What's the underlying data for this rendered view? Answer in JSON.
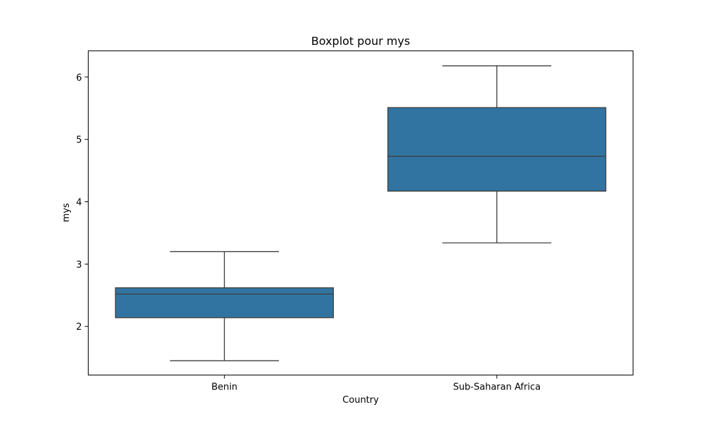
{
  "chart_data": {
    "type": "boxplot",
    "title": "Boxplot pour mys",
    "xlabel": "Country",
    "ylabel": "mys",
    "categories": [
      "Benin",
      "Sub-Saharan Africa"
    ],
    "ylim": [
      1.22,
      6.42
    ],
    "yticks": [
      2,
      3,
      4,
      5,
      6
    ],
    "grid": false,
    "boxes": [
      {
        "category": "Benin",
        "whisker_low": 1.45,
        "q1": 2.14,
        "median": 2.52,
        "q3": 2.62,
        "whisker_high": 3.2
      },
      {
        "category": "Sub-Saharan Africa",
        "whisker_low": 3.34,
        "q1": 4.17,
        "median": 4.73,
        "q3": 5.51,
        "whisker_high": 6.18
      }
    ],
    "box_color": "#3274a1",
    "line_color": "#3d3d3d"
  }
}
